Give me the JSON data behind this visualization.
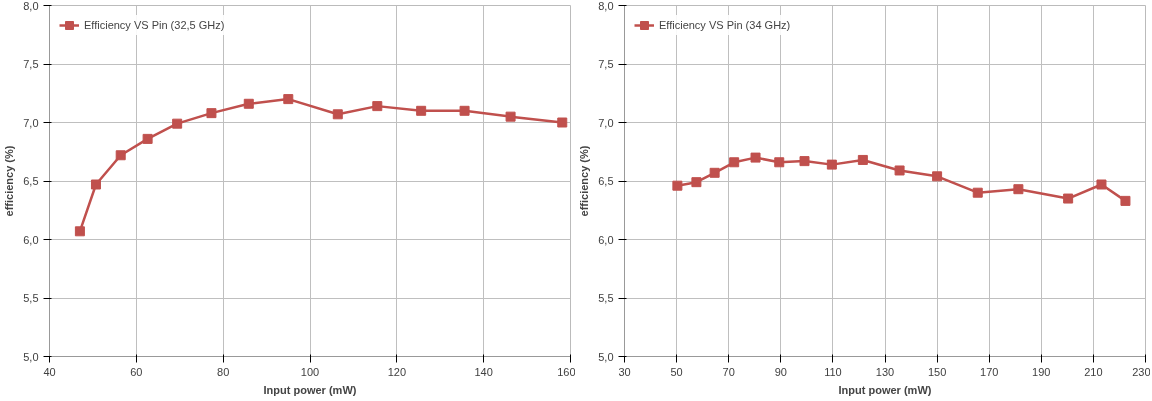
{
  "chart_data": [
    {
      "type": "line",
      "xlabel": "Input power (mW)",
      "ylabel": "efficiency (%)",
      "series": [
        {
          "name": "Efficiency VS Pin (32,5 GHz)",
          "color": "#c0504d",
          "x": [
            47.0,
            50.7,
            56.4,
            62.6,
            69.4,
            77.3,
            85.9,
            95.0,
            106.4,
            115.5,
            125.6,
            135.6,
            146.2,
            158.1
          ],
          "values": [
            6.07,
            6.47,
            6.72,
            6.86,
            6.99,
            7.08,
            7.16,
            7.2,
            7.07,
            7.14,
            7.1,
            7.1,
            7.05,
            7.0
          ]
        }
      ],
      "xlim": [
        40,
        160
      ],
      "xticks": [
        40,
        60,
        80,
        100,
        120,
        140,
        160
      ],
      "ylim": [
        5,
        8
      ],
      "yticks": [
        {
          "value": 5,
          "label": "5,0"
        },
        {
          "value": 5.5,
          "label": "5,5"
        },
        {
          "value": 6,
          "label": "6,0"
        },
        {
          "value": 6.5,
          "label": "6,5"
        },
        {
          "value": 7,
          "label": "7,0"
        },
        {
          "value": 7.5,
          "label": "7,5"
        },
        {
          "value": 8,
          "label": "8,0"
        }
      ],
      "grid": true,
      "legend": "top left",
      "marker": "square",
      "line_style": "solid"
    },
    {
      "type": "line",
      "xlabel": "Input power (mW)",
      "ylabel": "efficiency (%)",
      "series": [
        {
          "name": "Efficiency VS Pin (34 GHz)",
          "color": "#c0504d",
          "x": [
            50.3,
            57.6,
            64.6,
            72.1,
            80.3,
            89.4,
            99.1,
            109.6,
            121.5,
            135.6,
            150.0,
            165.6,
            181.2,
            200.3,
            213.1,
            222.3
          ],
          "values": [
            6.46,
            6.49,
            6.57,
            6.66,
            6.7,
            6.66,
            6.67,
            6.64,
            6.68,
            6.59,
            6.54,
            6.4,
            6.43,
            6.35,
            6.47,
            6.33
          ]
        }
      ],
      "xlim": [
        30,
        230
      ],
      "xticks": [
        30,
        50,
        70,
        90,
        110,
        130,
        150,
        170,
        190,
        210,
        230
      ],
      "ylim": [
        5,
        8
      ],
      "yticks": [
        {
          "value": 5,
          "label": "5,0"
        },
        {
          "value": 5.5,
          "label": "5,5"
        },
        {
          "value": 6,
          "label": "6,0"
        },
        {
          "value": 6.5,
          "label": "6,5"
        },
        {
          "value": 7,
          "label": "7,0"
        },
        {
          "value": 7.5,
          "label": "7,5"
        },
        {
          "value": 8,
          "label": "8,0"
        }
      ],
      "grid": true,
      "legend": "top left",
      "marker": "square",
      "line_style": "solid"
    }
  ]
}
